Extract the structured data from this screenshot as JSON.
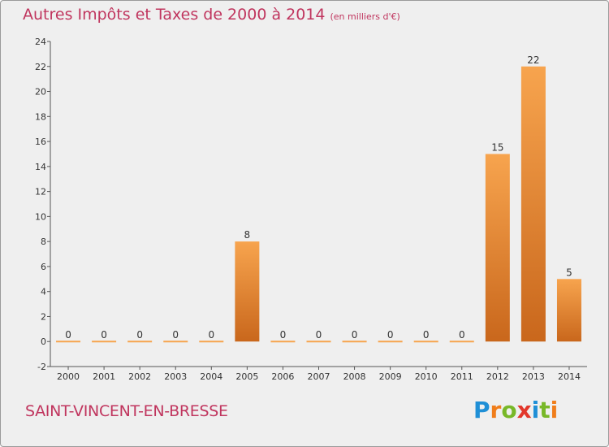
{
  "header": {
    "title": "Autres Impôts et Taxes de 2000 à 2014",
    "subtitle": "(en milliers d'€)"
  },
  "footer": {
    "commune": "SAINT-VINCENT-EN-BRESSE",
    "logo": {
      "letters": [
        "P",
        "r",
        "o",
        "x",
        "i",
        "t",
        "i"
      ],
      "colors": [
        "#1f8fd6",
        "#f07d1a",
        "#78b828",
        "#e2372b",
        "#1f8fd6",
        "#78b828",
        "#f07d1a"
      ]
    }
  },
  "chart_data": {
    "type": "bar",
    "categories": [
      "2000",
      "2001",
      "2002",
      "2003",
      "2004",
      "2005",
      "2006",
      "2007",
      "2008",
      "2009",
      "2010",
      "2011",
      "2012",
      "2013",
      "2014"
    ],
    "values": [
      0,
      0,
      0,
      0,
      0,
      8,
      0,
      0,
      0,
      0,
      0,
      0,
      15,
      22,
      5
    ],
    "data_labels": [
      "0",
      "0",
      "0",
      "0",
      "0",
      "8",
      "0",
      "0",
      "0",
      "0",
      "0",
      "0",
      "15",
      "22",
      "5"
    ],
    "title": "Autres Impôts et Taxes de 2000 à 2014",
    "ylim": [
      -2,
      24
    ],
    "yticks": [
      -2,
      0,
      2,
      4,
      6,
      8,
      10,
      12,
      14,
      16,
      18,
      20,
      22,
      24
    ],
    "grid": false,
    "legend": "none",
    "colors": {
      "bar_light": "#f7a44e",
      "bar_dark": "#c9671c",
      "axis": "#555555"
    }
  }
}
